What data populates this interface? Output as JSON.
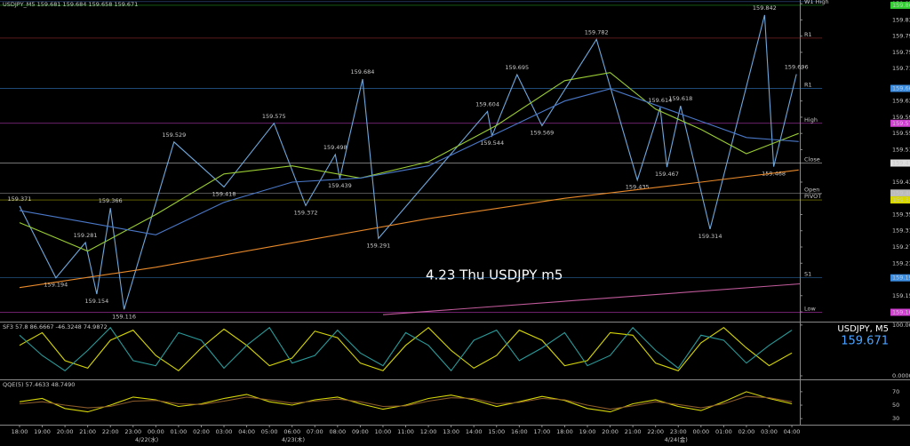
{
  "chart_data": [
    {
      "type": "line",
      "title": "USDJPY_M5 159.681 159.684 159.658 159.671",
      "annotation": "4.23 Thu USDJPY m5",
      "xlim": [
        -0.86,
        34.35
      ],
      "ylim": [
        159.086,
        159.879
      ],
      "yticks": [
        {
          "value": 159.87,
          "label": "159.870"
        },
        {
          "value": 159.83,
          "label": "159.830"
        },
        {
          "value": 159.79,
          "label": "159.790"
        },
        {
          "value": 159.75,
          "label": "159.750"
        },
        {
          "value": 159.71,
          "label": "159.710"
        },
        {
          "value": 159.63,
          "label": "159.630"
        },
        {
          "value": 159.59,
          "label": "159.590"
        },
        {
          "value": 159.55,
          "label": "159.550"
        },
        {
          "value": 159.51,
          "label": "159.510"
        },
        {
          "value": 159.43,
          "label": "159.430"
        },
        {
          "value": 159.35,
          "label": "159.350"
        },
        {
          "value": 159.31,
          "label": "159.310"
        },
        {
          "value": 159.27,
          "label": "159.270"
        },
        {
          "value": 159.23,
          "label": "159.230"
        },
        {
          "value": 159.15,
          "label": "159.150"
        },
        {
          "value": 159.11,
          "label": "159.110"
        }
      ],
      "series": [
        {
          "color": "#6fa8dc",
          "data_labels": true,
          "x": [
            0,
            1.6,
            2.9,
            3.4,
            4.0,
            4.6,
            6.8,
            9.0,
            11.2,
            12.6,
            13.9,
            14.1,
            15.1,
            15.8,
            20.6,
            20.8,
            21.9,
            23.0,
            25.4,
            27.2,
            28.2,
            28.5,
            29.1,
            30.4,
            32.8,
            33.2,
            34.2
          ],
          "values": [
            159.371,
            159.194,
            159.281,
            159.154,
            159.366,
            159.116,
            159.529,
            159.418,
            159.575,
            159.372,
            159.498,
            159.439,
            159.684,
            159.291,
            159.604,
            159.544,
            159.695,
            159.569,
            159.782,
            159.435,
            159.614,
            159.467,
            159.618,
            159.314,
            159.842,
            159.468,
            159.696
          ]
        },
        {
          "color": "#e8892a",
          "x": [
            0,
            6,
            12,
            18,
            24,
            30,
            34.3
          ],
          "values": [
            159.17,
            159.22,
            159.28,
            159.34,
            159.39,
            159.43,
            159.46
          ]
        },
        {
          "color": "#c05a9a",
          "x": [
            16,
            34.35
          ],
          "values": [
            159.103,
            159.179
          ]
        },
        {
          "color": "#9acd32",
          "x": [
            0,
            3,
            6,
            9,
            12,
            15,
            18,
            21,
            24,
            26,
            28,
            30,
            32,
            34.3
          ],
          "values": [
            159.33,
            159.26,
            159.35,
            159.45,
            159.47,
            159.44,
            159.48,
            159.57,
            159.68,
            159.7,
            159.61,
            159.56,
            159.5,
            159.55
          ]
        },
        {
          "color": "#4a78c8",
          "x": [
            0,
            3,
            6,
            9,
            12,
            15,
            18,
            21,
            24,
            26,
            28,
            30,
            32,
            34.3
          ],
          "values": [
            159.36,
            159.33,
            159.3,
            159.38,
            159.43,
            159.44,
            159.47,
            159.55,
            159.63,
            159.66,
            159.62,
            159.58,
            159.54,
            159.53
          ]
        }
      ],
      "levels": [
        {
          "name": "R2",
          "value": 159.875,
          "color": "#4a78c8",
          "box": false
        },
        {
          "name": "W1 High",
          "value": 159.866,
          "color": "#33cc33",
          "box": true
        },
        {
          "name": "R1",
          "value": 159.785,
          "color": "#a33",
          "box": false
        },
        {
          "name": "R1",
          "value": 159.661,
          "color": "#3c8de0",
          "box": true
        },
        {
          "name": "High",
          "value": 159.575,
          "color": "#d040d0",
          "box": true
        },
        {
          "name": "Close",
          "value": 159.477,
          "color": "#dddddd",
          "box": true
        },
        {
          "name": "Open",
          "value": 159.403,
          "color": "#bbbbbb",
          "box": true
        },
        {
          "name": "PIVOT",
          "value": 159.386,
          "color": "#d8d800",
          "box": true
        },
        {
          "name": "S1",
          "value": 159.194,
          "color": "#3c8de0",
          "box": true
        },
        {
          "name": "Low",
          "value": 159.109,
          "color": "#d040d0",
          "box": true
        }
      ]
    },
    {
      "type": "line",
      "title": "SF3 57.8 86.6667 -46.3248 74.9872",
      "symbol": "USDJPY, M5",
      "price": "159.671",
      "xlim": [
        -0.86,
        34.35
      ],
      "ylim": [
        -7,
        105
      ],
      "yticks": [
        {
          "value": 100,
          "label": "100.0000"
        },
        {
          "value": 0,
          "label": "0.0000"
        }
      ],
      "series": [
        {
          "color": "#d8d800",
          "x": [
            0,
            1,
            2,
            3,
            4,
            5,
            6,
            7,
            8,
            9,
            10,
            11,
            12,
            13,
            14,
            15,
            16,
            17,
            18,
            19,
            20,
            21,
            22,
            23,
            24,
            25,
            26,
            27,
            28,
            29,
            30,
            31,
            32,
            33,
            34
          ],
          "values": [
            60,
            85,
            30,
            15,
            70,
            90,
            40,
            10,
            55,
            92,
            60,
            20,
            35,
            88,
            75,
            25,
            10,
            60,
            95,
            50,
            15,
            40,
            90,
            70,
            20,
            30,
            85,
            80,
            25,
            10,
            65,
            95,
            55,
            20,
            45
          ]
        },
        {
          "color": "#2a9a9a",
          "x": [
            0,
            1,
            2,
            3,
            4,
            5,
            6,
            7,
            8,
            9,
            10,
            11,
            12,
            13,
            14,
            15,
            16,
            17,
            18,
            19,
            20,
            21,
            22,
            23,
            24,
            25,
            26,
            27,
            28,
            29,
            30,
            31,
            32,
            33,
            34
          ],
          "values": [
            80,
            40,
            10,
            50,
            95,
            30,
            20,
            85,
            70,
            15,
            60,
            95,
            25,
            40,
            90,
            45,
            20,
            85,
            60,
            10,
            70,
            90,
            30,
            55,
            85,
            20,
            40,
            95,
            50,
            15,
            80,
            70,
            25,
            60,
            90
          ]
        }
      ]
    },
    {
      "type": "line",
      "title": "QQE(5) 57.4633 48.7490",
      "xlim": [
        -0.86,
        34.35
      ],
      "ylim": [
        21,
        87
      ],
      "yticks": [
        70,
        50,
        30
      ],
      "xticks": [
        {
          "value": 0,
          "label": "18:00"
        },
        {
          "value": 1,
          "label": "19:00"
        },
        {
          "value": 2,
          "label": "20:00"
        },
        {
          "value": 3,
          "label": "21:00"
        },
        {
          "value": 4,
          "label": "22:00"
        },
        {
          "value": 5,
          "label": "23:00"
        },
        {
          "value": 6,
          "label": "00:00"
        },
        {
          "value": 7,
          "label": "01:00"
        },
        {
          "value": 8,
          "label": "02:00"
        },
        {
          "value": 9,
          "label": "03:00"
        },
        {
          "value": 10,
          "label": "04:00"
        },
        {
          "value": 11,
          "label": "05:00"
        },
        {
          "value": 12,
          "label": "06:00"
        },
        {
          "value": 13,
          "label": "07:00"
        },
        {
          "value": 14,
          "label": "08:00"
        },
        {
          "value": 15,
          "label": "09:00"
        },
        {
          "value": 16,
          "label": "10:00"
        },
        {
          "value": 17,
          "label": "11:00"
        },
        {
          "value": 18,
          "label": "12:00"
        },
        {
          "value": 19,
          "label": "13:00"
        },
        {
          "value": 20,
          "label": "14:00"
        },
        {
          "value": 21,
          "label": "15:00"
        },
        {
          "value": 22,
          "label": "16:00"
        },
        {
          "value": 23,
          "label": "17:00"
        },
        {
          "value": 24,
          "label": "18:00"
        },
        {
          "value": 25,
          "label": "19:00"
        },
        {
          "value": 26,
          "label": "20:00"
        },
        {
          "value": 27,
          "label": "21:00"
        },
        {
          "value": 28,
          "label": "22:00"
        },
        {
          "value": 29,
          "label": "23:00"
        },
        {
          "value": 30,
          "label": "00:00"
        },
        {
          "value": 31,
          "label": "01:00"
        },
        {
          "value": 32,
          "label": "02:00"
        },
        {
          "value": 33,
          "label": "03:00"
        },
        {
          "value": 34,
          "label": "04:00"
        }
      ],
      "date_labels": [
        {
          "value": 5.6,
          "label": "4/22(水)"
        },
        {
          "value": 12.05,
          "label": "4/23(木)"
        },
        {
          "value": 28.9,
          "label": "4/24(金)"
        }
      ],
      "series": [
        {
          "color": "#d8d800",
          "x": [
            0,
            1,
            2,
            3,
            4,
            5,
            6,
            7,
            8,
            9,
            10,
            11,
            12,
            13,
            14,
            15,
            16,
            17,
            18,
            19,
            20,
            21,
            22,
            23,
            24,
            25,
            26,
            27,
            28,
            29,
            30,
            31,
            32,
            33,
            34
          ],
          "values": [
            55,
            60,
            45,
            40,
            50,
            62,
            58,
            48,
            52,
            60,
            66,
            55,
            50,
            58,
            62,
            52,
            44,
            50,
            60,
            65,
            58,
            48,
            55,
            63,
            57,
            45,
            40,
            52,
            58,
            48,
            42,
            55,
            70,
            60,
            52
          ]
        },
        {
          "color": "#8a5a2a",
          "x": [
            0,
            1,
            2,
            3,
            4,
            5,
            6,
            7,
            8,
            9,
            10,
            11,
            12,
            13,
            14,
            15,
            16,
            17,
            18,
            19,
            20,
            21,
            22,
            23,
            24,
            25,
            26,
            27,
            28,
            29,
            30,
            31,
            32,
            33,
            34
          ],
          "values": [
            52,
            55,
            50,
            46,
            48,
            56,
            57,
            52,
            51,
            56,
            62,
            58,
            53,
            56,
            59,
            55,
            48,
            49,
            56,
            61,
            60,
            52,
            54,
            60,
            58,
            50,
            44,
            49,
            55,
            51,
            46,
            52,
            63,
            61,
            55
          ]
        }
      ]
    }
  ]
}
